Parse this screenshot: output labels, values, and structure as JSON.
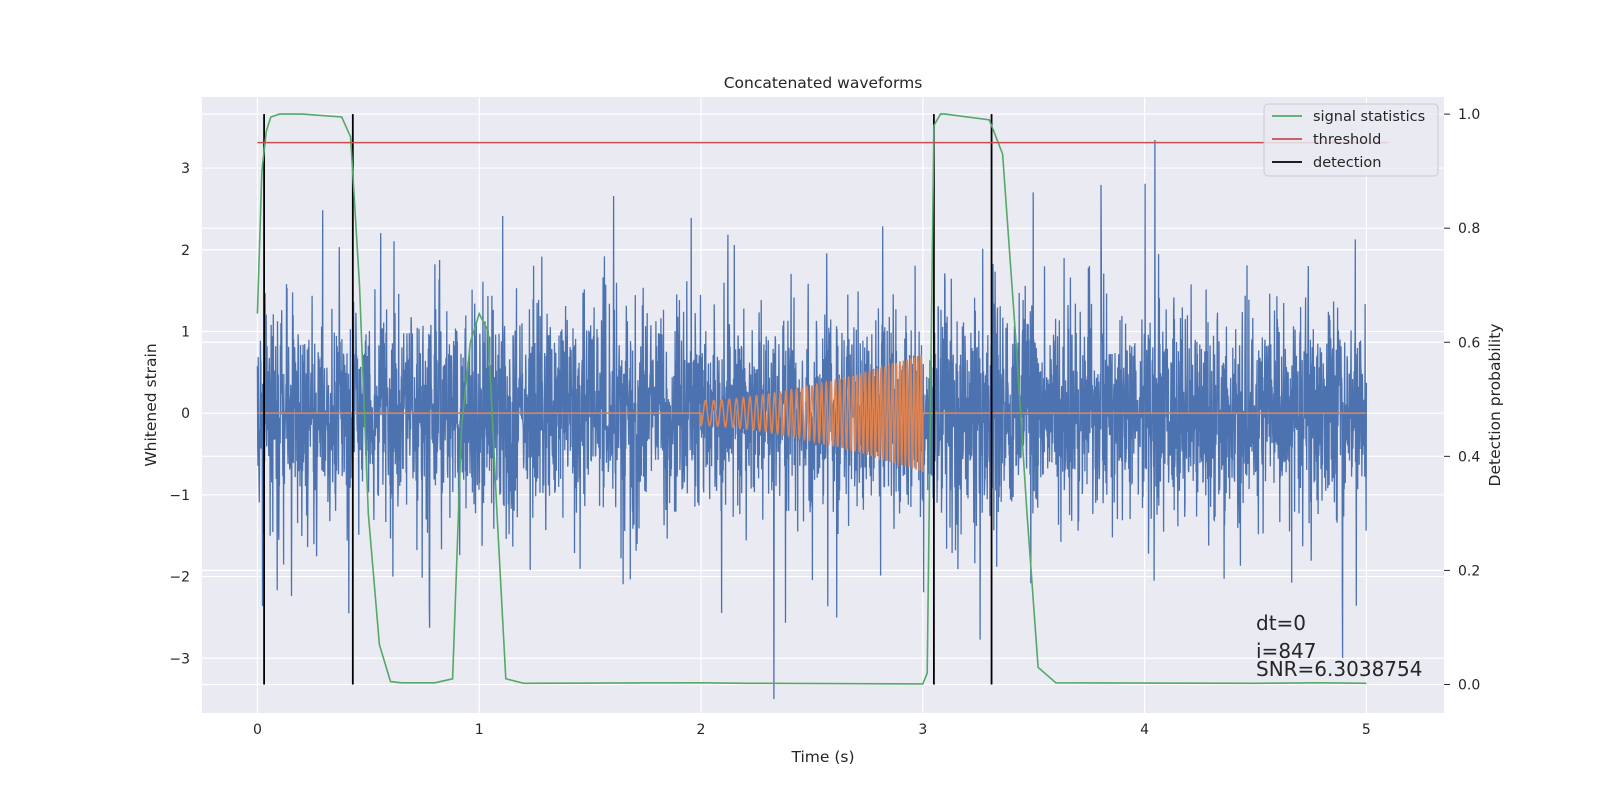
{
  "chart_data": {
    "type": "line",
    "title": "Concatenated waveforms",
    "xlabel": "Time (s)",
    "ylabel": "Whitened strain",
    "ylabel_right": "Detection probability",
    "xlim": [
      -0.25,
      5.35
    ],
    "ylim": [
      -3.67,
      3.87
    ],
    "ylim_right": [
      -0.05,
      1.03
    ],
    "x_ticks": [
      0,
      1,
      2,
      3,
      4,
      5
    ],
    "y_ticks": [
      -3,
      -2,
      -1,
      0,
      1,
      2,
      3
    ],
    "y_ticks_right": [
      0.0,
      0.2,
      0.4,
      0.6,
      0.8,
      1.0
    ],
    "y_tick_labels": [
      "−3",
      "−2",
      "−1",
      "0",
      "1",
      "2",
      "3"
    ],
    "y_tick_labels_right": [
      "0.0",
      "0.2",
      "0.4",
      "0.6",
      "0.8",
      "1.0"
    ],
    "grid": true,
    "legend_position": "top-right",
    "colors": {
      "strain": "#4c72b0",
      "template": "#dd8452",
      "signal_statistics": "#55a868",
      "threshold": "#c44e52",
      "detection": "#000000",
      "background": "#eaeaf2"
    },
    "series": [
      {
        "name": "",
        "role": "whitened-strain",
        "axis": "left",
        "x_range": [
          0,
          5
        ],
        "envelope_typical": 1.5,
        "peak_max": 3.5
      },
      {
        "name": "",
        "role": "injected-chirp",
        "axis": "left",
        "x_range": [
          2.0,
          3.0
        ],
        "amplitude_start": 0.15,
        "amplitude_end": 0.72
      },
      {
        "name": "signal statistics",
        "axis": "right",
        "x": [
          0.0,
          0.02,
          0.04,
          0.06,
          0.1,
          0.2,
          0.38,
          0.42,
          0.46,
          0.5,
          0.55,
          0.6,
          0.65,
          0.8,
          0.88,
          0.92,
          0.96,
          1.0,
          1.04,
          1.08,
          1.12,
          1.2,
          2.0,
          2.2,
          3.0,
          3.02,
          3.05,
          3.08,
          3.1,
          3.3,
          3.36,
          3.42,
          3.47,
          3.52,
          3.6,
          4.5,
          4.8,
          5.0
        ],
        "y": [
          0.65,
          0.9,
          0.97,
          0.995,
          1.0,
          1.0,
          0.995,
          0.96,
          0.7,
          0.3,
          0.07,
          0.005,
          0.003,
          0.003,
          0.01,
          0.45,
          0.6,
          0.65,
          0.62,
          0.3,
          0.01,
          0.002,
          0.003,
          0.002,
          0.001,
          0.02,
          0.98,
          1.0,
          1.0,
          0.99,
          0.93,
          0.6,
          0.3,
          0.03,
          0.003,
          0.002,
          0.003,
          0.002
        ]
      },
      {
        "name": "threshold",
        "axis": "right",
        "x": [
          0,
          5.1
        ],
        "y": [
          0.95,
          0.95
        ]
      },
      {
        "name": "detection",
        "axis": "right",
        "x": [
          0.03,
          0.43,
          3.05,
          3.31
        ],
        "y_range": [
          0.0,
          1.0
        ]
      }
    ],
    "legend": [
      "signal statistics",
      "threshold",
      "detection"
    ],
    "annotations": [
      "dt=0",
      "i=847",
      "SNR=6.3038754"
    ]
  }
}
